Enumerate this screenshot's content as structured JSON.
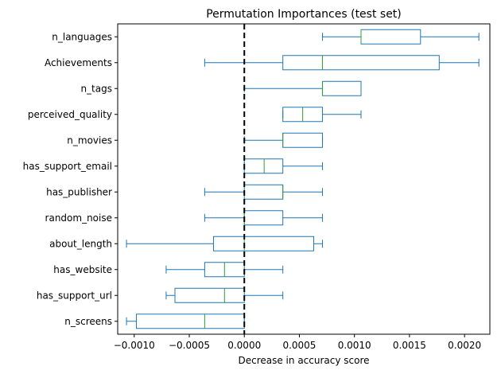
{
  "chart_data": {
    "type": "boxplot",
    "orientation": "horizontal",
    "title": "Permutation Importances (test set)",
    "xlabel": "Decrease in accuracy score",
    "ylabel": "",
    "xlim": [
      -0.00115,
      0.00223
    ],
    "xticks": [
      {
        "value": -0.001,
        "label": "−0.0010"
      },
      {
        "value": -0.0005,
        "label": "−0.0005"
      },
      {
        "value": 0.0,
        "label": "0.0000"
      },
      {
        "value": 0.0005,
        "label": "0.0005"
      },
      {
        "value": 0.001,
        "label": "0.0010"
      },
      {
        "value": 0.0015,
        "label": "0.0015"
      },
      {
        "value": 0.002,
        "label": "0.0020"
      }
    ],
    "reference_line": {
      "x": 0.0,
      "style": "dashed",
      "color": "#000000"
    },
    "box_color": "#1f77b4",
    "median_color": "#2ca02c",
    "features": [
      {
        "name": "n_languages",
        "whisker_low": 0.00071,
        "q1": 0.00106,
        "median": 0.00106,
        "q3": 0.0016,
        "whisker_high": 0.00213
      },
      {
        "name": "Achievements",
        "whisker_low": -0.00036,
        "q1": 0.00035,
        "median": 0.00071,
        "q3": 0.00177,
        "whisker_high": 0.00213
      },
      {
        "name": "n_tags",
        "whisker_low": 0.0,
        "q1": 0.00071,
        "median": 0.00071,
        "q3": 0.00106,
        "whisker_high": 0.00106
      },
      {
        "name": "perceived_quality",
        "whisker_low": 0.00035,
        "q1": 0.00035,
        "median": 0.00053,
        "q3": 0.00071,
        "whisker_high": 0.00106
      },
      {
        "name": "n_movies",
        "whisker_low": 0.0,
        "q1": 0.00035,
        "median": 0.00035,
        "q3": 0.00071,
        "whisker_high": 0.00071
      },
      {
        "name": "has_support_email",
        "whisker_low": 0.0,
        "q1": 0.0,
        "median": 0.00018,
        "q3": 0.00035,
        "whisker_high": 0.00071
      },
      {
        "name": "has_publisher",
        "whisker_low": -0.00036,
        "q1": 0.0,
        "median": 0.00035,
        "q3": 0.00035,
        "whisker_high": 0.00071
      },
      {
        "name": "random_noise",
        "whisker_low": -0.00036,
        "q1": 0.0,
        "median": 0.0,
        "q3": 0.00035,
        "whisker_high": 0.00071
      },
      {
        "name": "about_length",
        "whisker_low": -0.00107,
        "q1": -0.00028,
        "median": 0.0,
        "q3": 0.00063,
        "whisker_high": 0.00071
      },
      {
        "name": "has_website",
        "whisker_low": -0.00071,
        "q1": -0.00036,
        "median": -0.00018,
        "q3": 0.0,
        "whisker_high": 0.00035
      },
      {
        "name": "has_support_url",
        "whisker_low": -0.00071,
        "q1": -0.00063,
        "median": -0.00018,
        "q3": 0.0,
        "whisker_high": 0.00035
      },
      {
        "name": "n_screens",
        "whisker_low": -0.00107,
        "q1": -0.00098,
        "median": -0.00036,
        "q3": 0.0,
        "whisker_high": 0.0
      }
    ]
  }
}
